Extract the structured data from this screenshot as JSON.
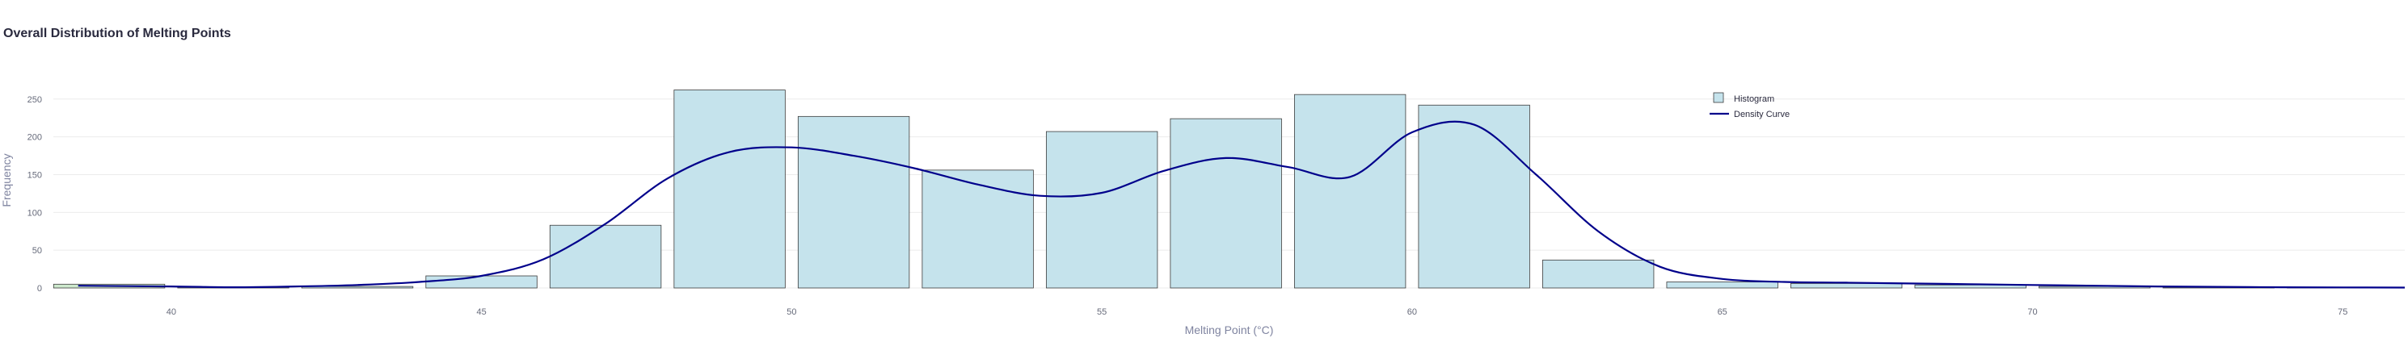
{
  "chart_data": {
    "type": "bar",
    "title": "Overall Distribution of Melting Points",
    "xlabel": "Melting Point (°C)",
    "ylabel": "Frequency",
    "xlim": [
      38.1,
      76
    ],
    "ylim": [
      0,
      285
    ],
    "xticks": [
      40,
      45,
      50,
      55,
      60,
      65,
      70,
      75
    ],
    "yticks": [
      0,
      50,
      100,
      150,
      200,
      250
    ],
    "grid": true,
    "legend_position": "top-right",
    "legend": [
      {
        "name": "Histogram",
        "kind": "bar"
      },
      {
        "name": "Density Curve",
        "kind": "line"
      }
    ],
    "colors": {
      "bar_fill": "#c5e3ec",
      "bar_stroke": "#3d3d3d",
      "first_bar_fill": "#cde9cd",
      "density": "#00008b",
      "grid": "#ebebeb"
    },
    "histogram": {
      "bin_edges": [
        38,
        40,
        42,
        44,
        46,
        48,
        50,
        52,
        54,
        56,
        58,
        60,
        62,
        64,
        66,
        68,
        70,
        72,
        74,
        76
      ],
      "values": [
        5,
        1,
        2,
        16,
        83,
        262,
        227,
        156,
        207,
        224,
        256,
        242,
        37,
        8,
        6,
        4,
        2,
        1,
        1
      ]
    },
    "density_curve": {
      "x": [
        38.5,
        40,
        41,
        42,
        43,
        44,
        45,
        46,
        47,
        48,
        49,
        50,
        51,
        52,
        53,
        54,
        55,
        56,
        57,
        58,
        59,
        60,
        61,
        62,
        63,
        64,
        65,
        66,
        67,
        68,
        69,
        70,
        71,
        72,
        73,
        74,
        75,
        76
      ],
      "y": [
        3,
        2,
        1,
        2,
        4,
        8,
        16,
        38,
        85,
        145,
        180,
        186,
        175,
        158,
        137,
        122,
        126,
        155,
        172,
        160,
        147,
        206,
        216,
        150,
        75,
        28,
        12,
        8,
        7,
        6,
        5,
        4,
        3,
        2,
        1.5,
        1,
        0.7,
        0.5
      ]
    }
  }
}
